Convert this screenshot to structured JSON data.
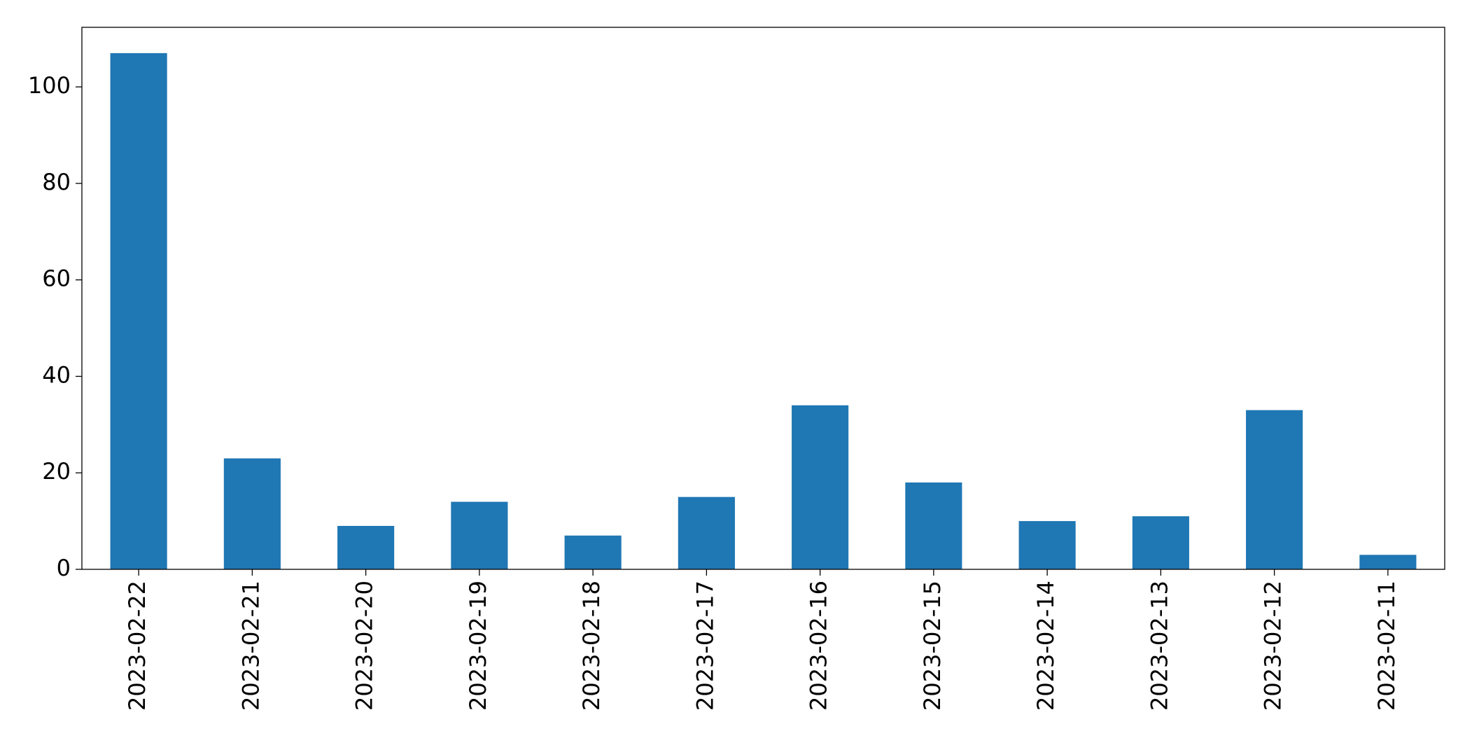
{
  "chart_data": {
    "type": "bar",
    "categories": [
      "2023-02-22",
      "2023-02-21",
      "2023-02-20",
      "2023-02-19",
      "2023-02-18",
      "2023-02-17",
      "2023-02-16",
      "2023-02-15",
      "2023-02-14",
      "2023-02-13",
      "2023-02-12",
      "2023-02-11"
    ],
    "values": [
      107,
      23,
      9,
      14,
      7,
      15,
      34,
      18,
      10,
      11,
      33,
      3
    ],
    "color": "#1f77b4",
    "ylim": [
      0,
      112.35
    ],
    "yticks": [
      0,
      20,
      40,
      60,
      80,
      100
    ],
    "grid": false
  }
}
